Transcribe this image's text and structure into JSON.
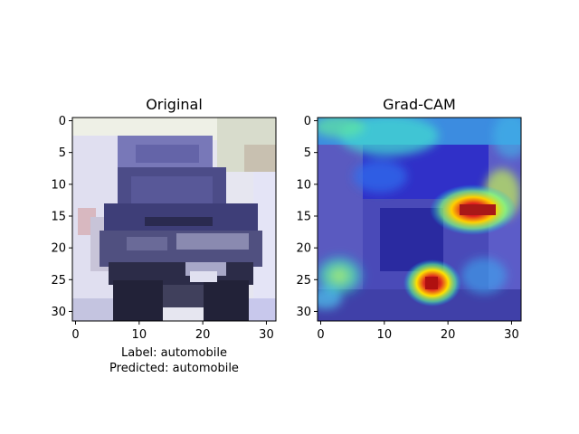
{
  "chart_data": [
    {
      "type": "heatmap",
      "title": "Original",
      "xlabel": [
        "Label: automobile",
        "Predicted: automobile"
      ],
      "ylabel": "",
      "xlim": [
        0,
        31
      ],
      "ylim": [
        0,
        31
      ],
      "x_ticks": [
        0,
        10,
        20,
        30
      ],
      "y_ticks": [
        0,
        5,
        10,
        15,
        20,
        25,
        30
      ],
      "image_size": [
        32,
        32
      ],
      "content": "pixelated photo of a dark blue car",
      "colors": {
        "background": "#dcdcf0",
        "car_body": "#3c3c78",
        "dark": "#1e1e32"
      }
    },
    {
      "type": "heatmap",
      "title": "Grad-CAM",
      "xlabel": "",
      "ylabel": "",
      "xlim": [
        0,
        31
      ],
      "ylim": [
        0,
        31
      ],
      "x_ticks": [
        0,
        10,
        20,
        30
      ],
      "y_ticks": [
        0,
        5,
        10,
        15,
        20,
        25,
        30
      ],
      "image_size": [
        32,
        32
      ],
      "colormap": "jet",
      "overlay": "original image blended with Grad-CAM heatmap",
      "hotspots": [
        {
          "x": 24,
          "y": 14,
          "level": "high"
        },
        {
          "x": 18,
          "y": 26,
          "level": "high"
        },
        {
          "x": 14,
          "y": 3,
          "level": "medium"
        },
        {
          "x": 6,
          "y": 25,
          "level": "medium"
        }
      ]
    }
  ]
}
